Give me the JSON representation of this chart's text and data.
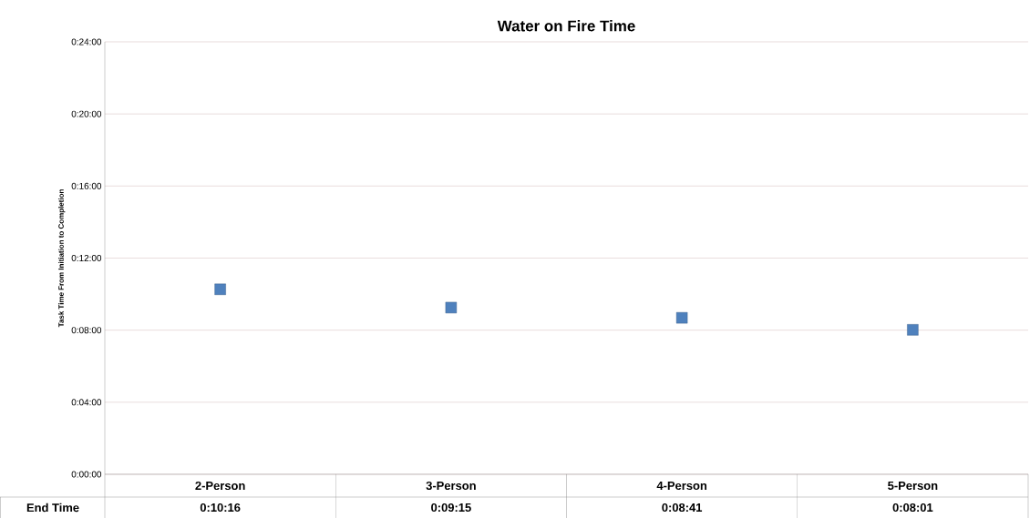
{
  "chart_data": {
    "type": "scatter",
    "title": "Water on Fire Time",
    "ylabel": "Task Time From Initiation to Completion",
    "categories": [
      "2-Person",
      "3-Person",
      "4-Person",
      "5-Person"
    ],
    "values": [
      10.2667,
      9.25,
      8.6833,
      8.0167
    ],
    "value_labels": [
      "0:10:16",
      "0:09:15",
      "0:08:41",
      "0:08:01"
    ],
    "color": "#4f81bd",
    "marker": "square",
    "grid": "y",
    "ylim": [
      0,
      24
    ],
    "yticks": [
      {
        "value": 0,
        "label": "0:00:00"
      },
      {
        "value": 4,
        "label": "0:04:00"
      },
      {
        "value": 8,
        "label": "0:08:00"
      },
      {
        "value": 12,
        "label": "0:12:00"
      },
      {
        "value": 16,
        "label": "0:16:00"
      },
      {
        "value": 20,
        "label": "0:20:00"
      },
      {
        "value": 24,
        "label": "0:24:00"
      }
    ],
    "annotations": [
      "End Time"
    ]
  }
}
